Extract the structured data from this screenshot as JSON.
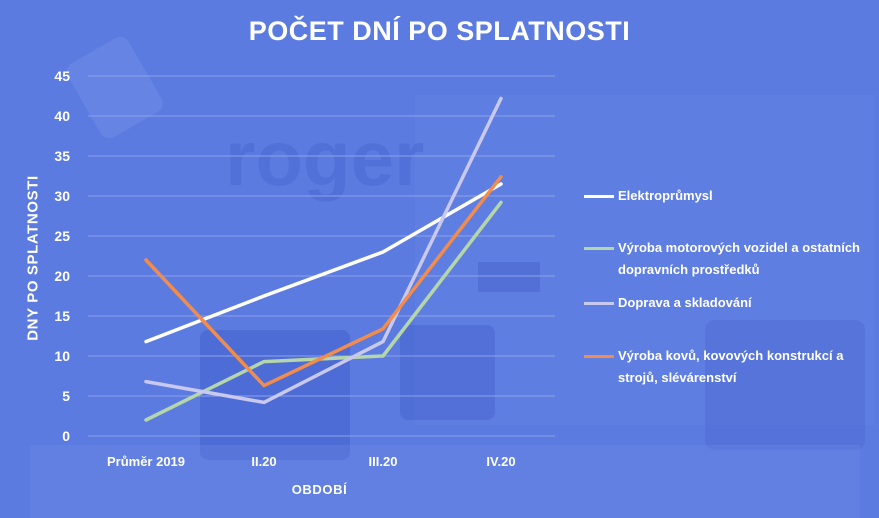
{
  "colors": {
    "background": "#5b7be0",
    "text": "#ffffff",
    "grid": "#8ea2ea"
  },
  "chart_data": {
    "type": "line",
    "title": "POČET DNÍ PO SPLATNOSTI",
    "xlabel": "OBDOBÍ",
    "ylabel": "DNY PO SPLATNOSTI",
    "categories": [
      "Průměr 2019",
      "II.20",
      "III.20",
      "IV.20"
    ],
    "ylim": [
      0,
      45
    ],
    "yticks": [
      "0",
      "5",
      "10",
      "15",
      "20",
      "25",
      "30",
      "35",
      "40",
      "45"
    ],
    "grid": true,
    "legend_position": "right",
    "series": [
      {
        "name": "Elektroprůmysl",
        "color": "#ffffff",
        "values": [
          11.8,
          17.5,
          23.0,
          31.5
        ]
      },
      {
        "name": "Výroba motorových vozidel a ostatních dopravních prostředků",
        "color": "#b4d6a8",
        "values": [
          2.0,
          9.3,
          10.0,
          29.2
        ]
      },
      {
        "name": "Doprava a skladování",
        "color": "#c9c8ee",
        "values": [
          6.8,
          4.2,
          11.8,
          42.2
        ]
      },
      {
        "name": "Výroba kovů, kovových konstrukcí a strojů, slévárenství",
        "color": "#f28c4c",
        "values": [
          22.0,
          6.3,
          13.4,
          32.4
        ]
      }
    ]
  }
}
